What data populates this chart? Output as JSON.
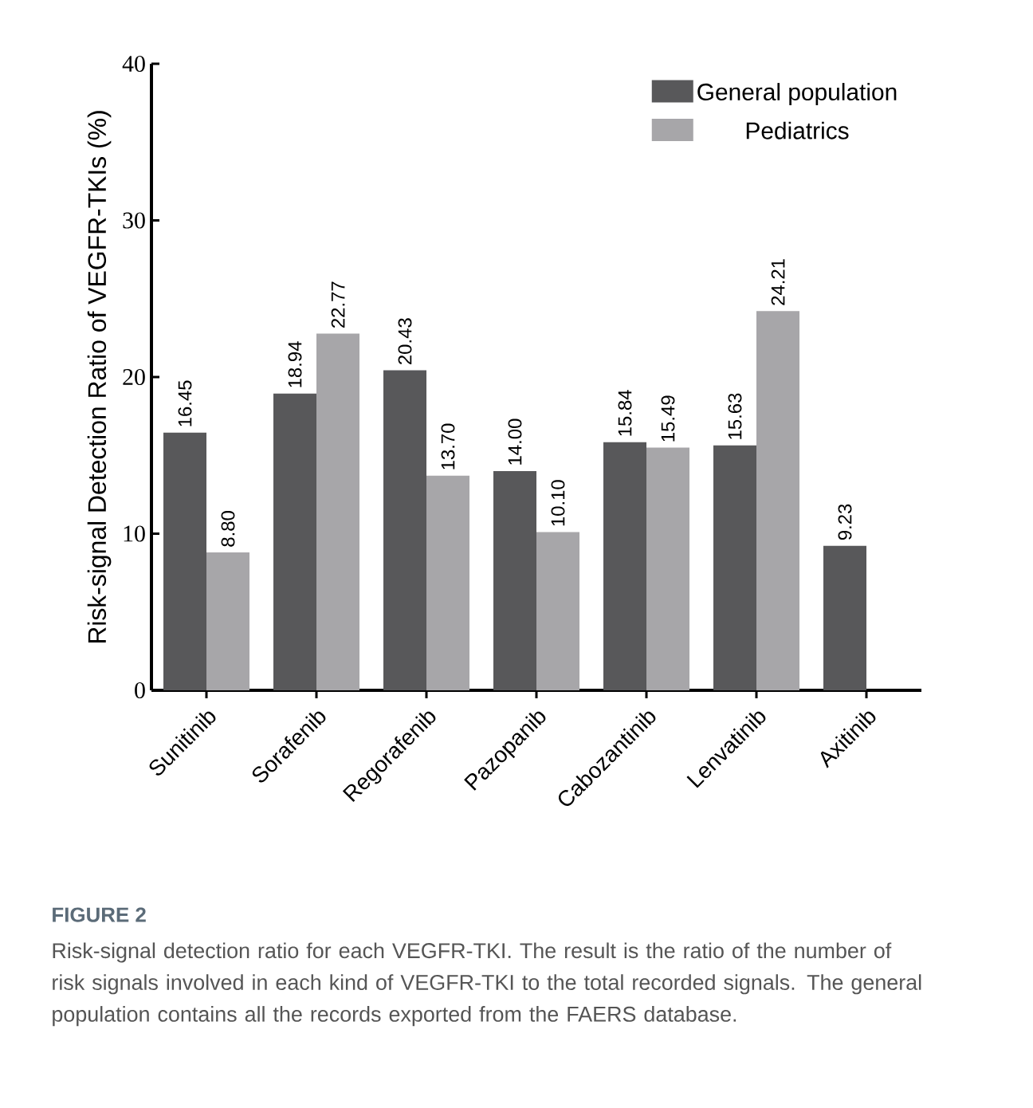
{
  "chart_data": {
    "type": "bar",
    "ylabel": "Risk-signal Detection Ratio of VEGFR-TKIs (%)",
    "categories": [
      "Sunitinib",
      "Sorafenib",
      "Regorafenib",
      "Pazopanib",
      "Cabozantinib",
      "Lenvatinib",
      "Axitinib"
    ],
    "series": [
      {
        "name": "General population",
        "color": "#58585a",
        "values": [
          16.45,
          18.94,
          20.43,
          14.0,
          15.84,
          15.63,
          9.23
        ],
        "value_labels": [
          "16.45",
          "18.94",
          "20.43",
          "14.00",
          "15.84",
          "15.63",
          "9.23"
        ]
      },
      {
        "name": "Pediatrics",
        "color": "#a7a6a9",
        "values": [
          8.8,
          22.77,
          13.7,
          10.1,
          15.49,
          24.21,
          null
        ],
        "value_labels": [
          "8.80",
          "22.77",
          "13.70",
          "10.10",
          "15.49",
          "24.21",
          null
        ]
      }
    ],
    "ylim": [
      0,
      40
    ],
    "yticks": [
      0,
      10,
      20,
      30,
      40
    ],
    "legend": "top right",
    "annotations": [
      "FIGURE 2",
      "Risk-signal detection ratio for each VEGFR-TKI. The result is the ratio of the number of risk signals involved in each kind of VEGFR-TKI to the total recorded signals. The general population contains all the records exported from the FAERS database."
    ]
  }
}
